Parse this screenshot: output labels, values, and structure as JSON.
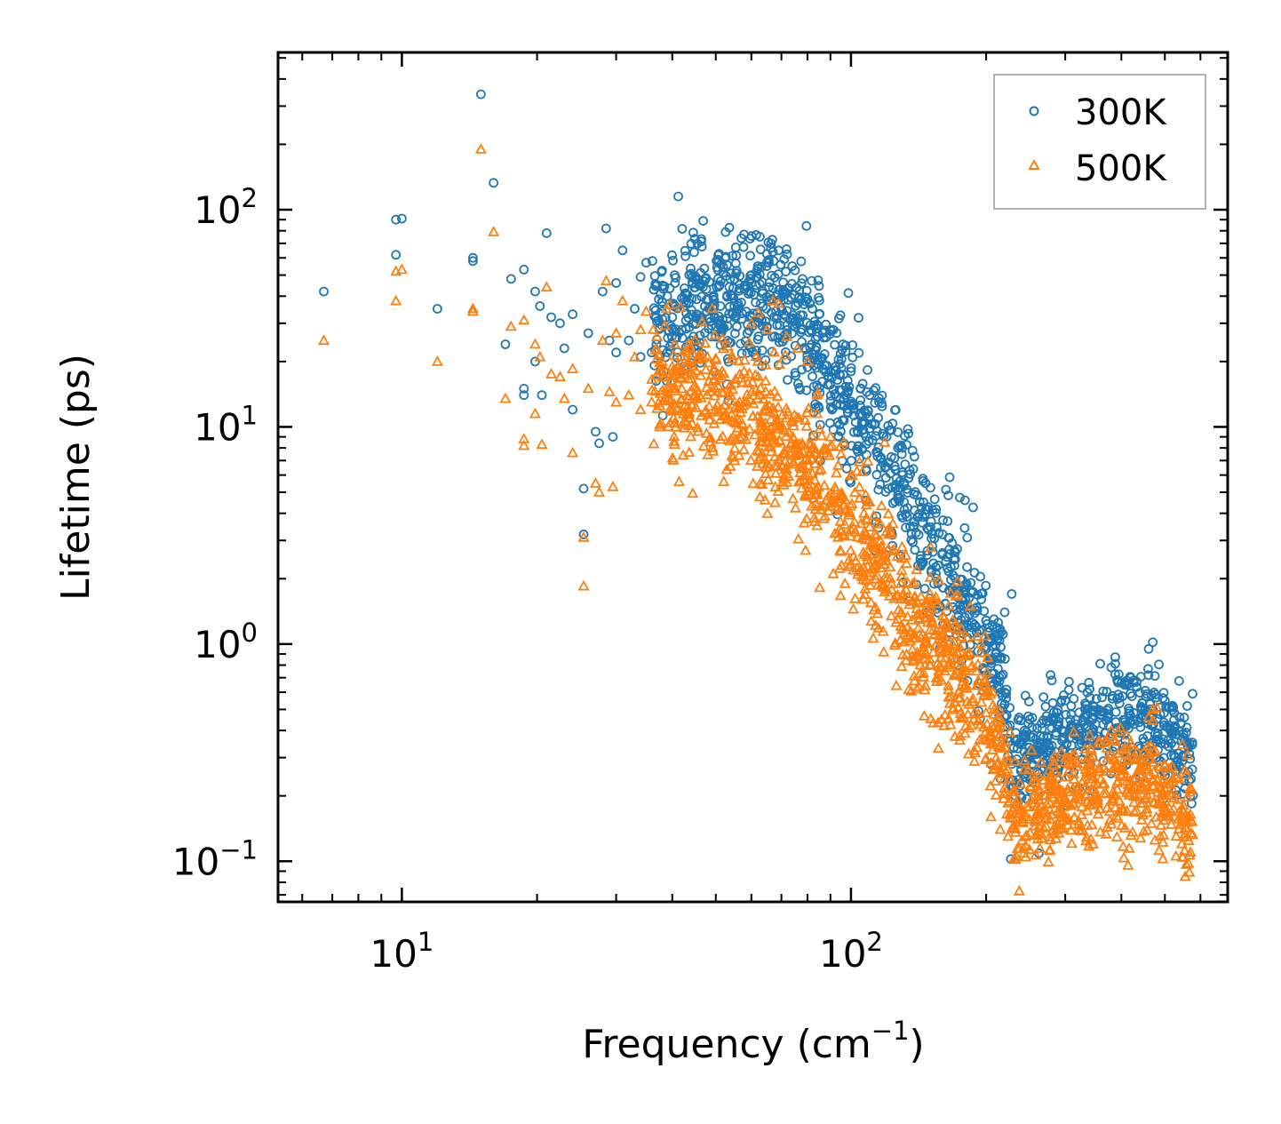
{
  "chart_data": {
    "type": "scatter",
    "title": "",
    "xlabel_main": "Frequency (cm",
    "xlabel_sup": "−1",
    "xlabel_end": ")",
    "ylabel": "Lifetime (ps)",
    "xscale": "log",
    "yscale": "log",
    "xlim": [
      5.3,
      690
    ],
    "ylim": [
      0.065,
      530
    ],
    "tick_base": "10",
    "x_ticks": [
      {
        "value": 10,
        "exp": "1"
      },
      {
        "value": 100,
        "exp": "2"
      }
    ],
    "y_ticks": [
      {
        "value": 0.1,
        "exp": "−1"
      },
      {
        "value": 1,
        "exp": "0"
      },
      {
        "value": 10,
        "exp": "1"
      },
      {
        "value": 100,
        "exp": "2"
      }
    ],
    "legend_position": "top-right",
    "series": [
      {
        "name": "300K",
        "marker": "circle",
        "color": "#1f77b4",
        "points": [
          [
            6.7,
            42
          ],
          [
            9.7,
            90
          ],
          [
            10,
            91
          ],
          [
            9.7,
            62
          ],
          [
            12,
            35
          ],
          [
            14.4,
            60
          ],
          [
            14.4,
            58
          ],
          [
            15,
            340
          ],
          [
            16,
            133
          ],
          [
            17,
            24
          ],
          [
            17.5,
            48
          ],
          [
            18.7,
            53
          ],
          [
            18.7,
            15
          ],
          [
            18.7,
            14
          ],
          [
            19.8,
            42
          ],
          [
            19.8,
            20
          ],
          [
            20.3,
            36
          ],
          [
            20.5,
            14
          ],
          [
            21,
            78
          ],
          [
            21.5,
            32
          ],
          [
            22.5,
            30
          ],
          [
            23,
            23
          ],
          [
            24,
            12
          ],
          [
            24,
            33
          ],
          [
            25.4,
            5.2
          ],
          [
            25.4,
            3.2
          ],
          [
            26,
            27
          ],
          [
            27,
            9.5
          ],
          [
            27.5,
            8.4
          ],
          [
            28,
            42
          ],
          [
            28.5,
            82
          ],
          [
            29,
            25
          ],
          [
            29.5,
            9
          ],
          [
            30,
            46
          ],
          [
            30,
            22
          ],
          [
            31,
            65
          ],
          [
            32,
            25
          ],
          [
            33,
            35
          ],
          [
            34,
            49
          ],
          [
            34,
            21
          ],
          [
            35,
            57
          ],
          [
            36,
            22
          ],
          [
            37,
            45
          ],
          [
            38,
            36
          ],
          [
            39,
            40
          ],
          [
            40,
            32
          ],
          [
            40.5,
            50
          ],
          [
            42,
            28
          ],
          [
            44,
            25
          ],
          [
            46,
            31
          ],
          [
            50,
            29
          ],
          [
            55,
            36
          ],
          [
            58,
            43
          ],
          [
            60,
            50
          ],
          [
            62,
            55
          ],
          [
            65,
            55
          ],
          [
            67,
            64
          ],
          [
            69,
            65
          ],
          [
            74,
            55
          ],
          [
            78,
            48
          ],
          [
            82,
            35
          ],
          [
            85,
            33
          ],
          [
            90,
            28
          ],
          [
            96,
            24
          ],
          [
            100,
            18
          ],
          [
            105,
            15
          ],
          [
            110,
            14
          ],
          [
            115,
            11
          ],
          [
            120,
            9
          ],
          [
            130,
            8
          ],
          [
            145,
            4.5
          ],
          [
            160,
            3.2
          ],
          [
            170,
            2.3
          ],
          [
            180,
            1.6
          ],
          [
            190,
            1.2
          ],
          [
            200,
            0.95
          ],
          [
            210,
            0.9
          ],
          [
            220,
            1.4
          ],
          [
            228,
            1.7
          ],
          [
            205,
            0.28
          ],
          [
            215,
            0.24
          ],
          [
            250,
            0.45
          ],
          [
            280,
            0.68
          ],
          [
            300,
            0.55
          ],
          [
            340,
            0.62
          ],
          [
            380,
            0.78
          ],
          [
            420,
            0.7
          ],
          [
            460,
            0.95
          ],
          [
            470,
            1.02
          ],
          [
            500,
            0.55
          ],
          [
            520,
            0.52
          ],
          [
            560,
            0.25
          ],
          [
            570,
            0.2
          ]
        ]
      },
      {
        "name": "500K",
        "marker": "triangle",
        "color": "#ff7f0e",
        "points": [
          [
            6.7,
            25
          ],
          [
            9.7,
            52
          ],
          [
            10,
            53
          ],
          [
            9.7,
            38
          ],
          [
            12,
            20
          ],
          [
            14.4,
            34
          ],
          [
            14.4,
            35
          ],
          [
            15,
            190
          ],
          [
            16,
            79
          ],
          [
            17,
            13.5
          ],
          [
            17.5,
            29
          ],
          [
            18.7,
            31
          ],
          [
            18.7,
            8.8
          ],
          [
            18.7,
            8.2
          ],
          [
            19.8,
            24
          ],
          [
            19.8,
            11.5
          ],
          [
            20.3,
            21
          ],
          [
            20.5,
            8.3
          ],
          [
            21,
            44
          ],
          [
            21.5,
            17.5
          ],
          [
            22.5,
            17
          ],
          [
            23,
            13.5
          ],
          [
            24,
            7.6
          ],
          [
            24,
            18.5
          ],
          [
            25.4,
            3.1
          ],
          [
            25.4,
            1.85
          ],
          [
            26,
            15
          ],
          [
            27,
            5.5
          ],
          [
            27.5,
            5
          ],
          [
            28,
            25
          ],
          [
            28.5,
            47
          ],
          [
            29,
            14.5
          ],
          [
            29.5,
            5.3
          ],
          [
            30,
            27
          ],
          [
            30,
            13
          ],
          [
            31,
            38
          ],
          [
            32,
            14
          ],
          [
            33,
            21
          ],
          [
            34,
            28
          ],
          [
            34,
            12
          ],
          [
            35,
            34
          ],
          [
            36,
            13
          ],
          [
            37,
            26
          ],
          [
            38,
            20
          ],
          [
            40,
            19
          ],
          [
            42,
            15
          ],
          [
            45,
            14
          ],
          [
            50,
            12
          ],
          [
            55,
            10.5
          ],
          [
            60,
            30
          ],
          [
            62,
            20
          ],
          [
            65,
            28
          ],
          [
            67,
            38
          ],
          [
            69,
            37
          ],
          [
            72,
            26
          ],
          [
            76,
            23
          ],
          [
            80,
            20
          ],
          [
            84,
            14
          ],
          [
            90,
            9
          ],
          [
            95,
            7.5
          ],
          [
            100,
            6
          ],
          [
            110,
            4.5
          ],
          [
            120,
            3.3
          ],
          [
            130,
            2.8
          ],
          [
            140,
            2.2
          ],
          [
            150,
            1.7
          ],
          [
            160,
            1.35
          ],
          [
            170,
            1.1
          ],
          [
            180,
            0.88
          ],
          [
            190,
            0.75
          ],
          [
            200,
            0.6
          ],
          [
            215,
            0.42
          ],
          [
            205,
            0.16
          ],
          [
            215,
            0.14
          ],
          [
            230,
            0.2
          ],
          [
            260,
            0.18
          ],
          [
            300,
            0.3
          ],
          [
            340,
            0.38
          ],
          [
            380,
            0.4
          ],
          [
            420,
            0.35
          ],
          [
            460,
            0.46
          ],
          [
            470,
            0.5
          ],
          [
            500,
            0.28
          ],
          [
            520,
            0.24
          ],
          [
            550,
            0.13
          ],
          [
            555,
            0.085
          ],
          [
            570,
            0.11
          ]
        ]
      }
    ]
  }
}
